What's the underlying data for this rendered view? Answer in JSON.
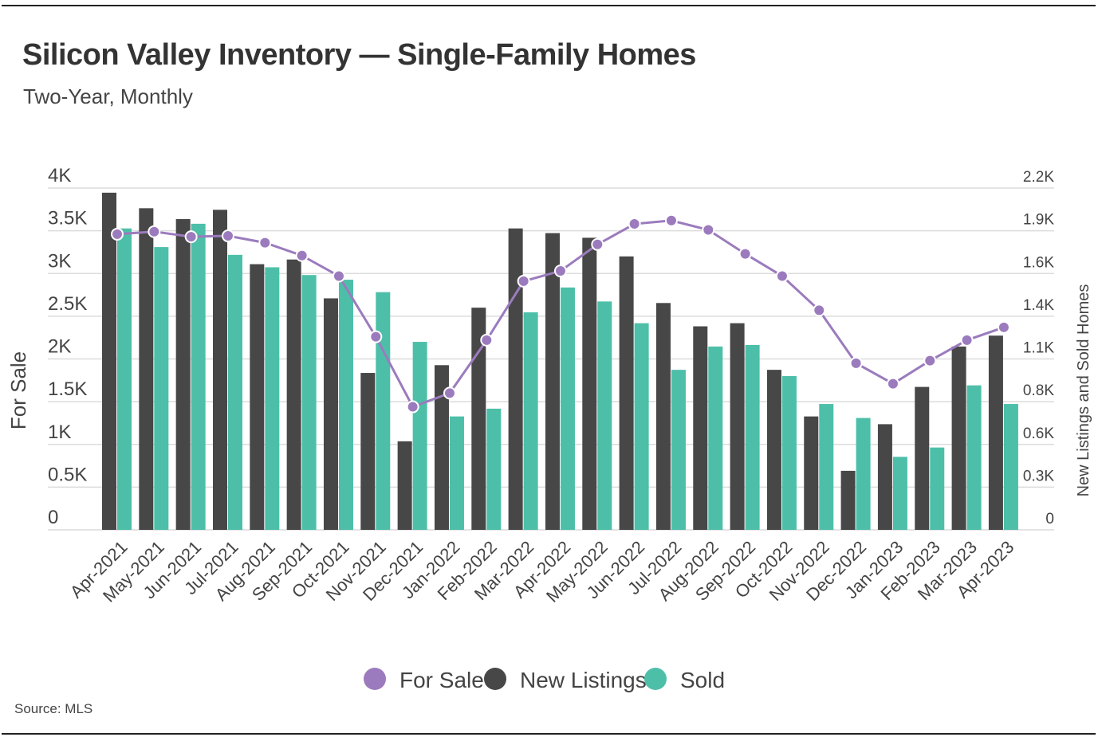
{
  "title": "Silicon Valley Inventory — Single-Family Homes",
  "subtitle": "Two-Year, Monthly",
  "source": "Source: MLS",
  "chart_data": {
    "type": "bar+line",
    "title": "Silicon Valley Inventory — Single-Family Homes",
    "subtitle": "Two-Year, Monthly",
    "ylabel_left": "For Sale",
    "ylabel_right": "New Listings and Sold Homes",
    "ylim_left": [
      0,
      4000
    ],
    "ylim_right": [
      0,
      2200
    ],
    "left_ticks": [
      "0",
      "0.5K",
      "1K",
      "1.5K",
      "2K",
      "2.5K",
      "3K",
      "3.5K",
      "4K"
    ],
    "right_ticks": [
      "0",
      "0.3K",
      "0.6K",
      "0.8K",
      "1.1K",
      "1.4K",
      "1.6K",
      "1.9K",
      "2.2K"
    ],
    "grid": true,
    "legend_position": "bottom",
    "categories": [
      "Apr-2021",
      "May-2021",
      "Jun-2021",
      "Jul-2021",
      "Aug-2021",
      "Sep-2021",
      "Oct-2021",
      "Nov-2021",
      "Dec-2021",
      "Jan-2022",
      "Feb-2022",
      "Mar-2022",
      "Apr-2022",
      "May-2022",
      "Jun-2022",
      "Jul-2022",
      "Aug-2022",
      "Sep-2022",
      "Oct-2022",
      "Nov-2022",
      "Dec-2022",
      "Jan-2023",
      "Feb-2023",
      "Mar-2023",
      "Apr-2023"
    ],
    "series": [
      {
        "name": "For Sale",
        "type": "line",
        "axis": "left",
        "color": "#9b7bbd",
        "values": [
          3460,
          3490,
          3430,
          3440,
          3360,
          3210,
          2970,
          2260,
          1440,
          1600,
          2220,
          2910,
          3030,
          3340,
          3580,
          3620,
          3510,
          3230,
          2970,
          2570,
          1950,
          1710,
          1980,
          2220,
          2370
        ]
      },
      {
        "name": "New Listings",
        "type": "bar",
        "axis": "right",
        "color": "#474747",
        "values": [
          2170,
          2070,
          2000,
          2060,
          1710,
          1740,
          1490,
          1010,
          570,
          1060,
          1430,
          1940,
          1910,
          1880,
          1760,
          1460,
          1310,
          1330,
          1030,
          730,
          380,
          680,
          920,
          1180,
          1250
        ]
      },
      {
        "name": "Sold",
        "type": "bar",
        "axis": "right",
        "color": "#4dbfa8",
        "values": [
          1940,
          1820,
          1970,
          1770,
          1690,
          1640,
          1610,
          1530,
          1210,
          730,
          780,
          1400,
          1560,
          1470,
          1330,
          1030,
          1180,
          1190,
          990,
          810,
          720,
          470,
          530,
          930,
          810
        ]
      }
    ]
  }
}
